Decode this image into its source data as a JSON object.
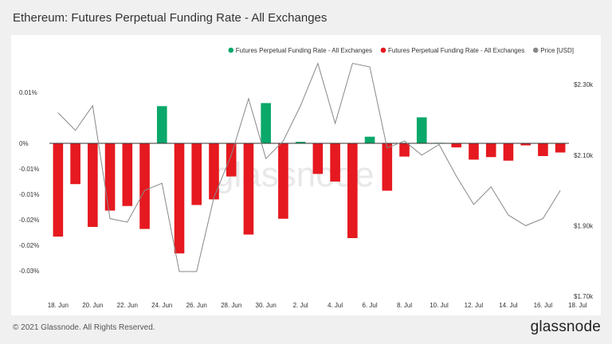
{
  "page": {
    "title": "Ethereum: Futures Perpetual Funding Rate - All Exchanges",
    "copyright": "© 2021 Glassnode. All Rights Reserved.",
    "brand": "glassnode",
    "watermark": "glassnode"
  },
  "colors": {
    "positive": "#0aa86a",
    "negative": "#e5191f",
    "price": "#888888",
    "zero_line": "#333333"
  },
  "chart_data": {
    "type": "bar",
    "title": "Ethereum: Futures Perpetual Funding Rate - All Exchanges",
    "legend": {
      "placement": "top-right",
      "items": [
        {
          "name": "Futures Perpetual Funding Rate - All Exchanges",
          "color": "#0aa86a",
          "icon": "dot"
        },
        {
          "name": "Futures Perpetual Funding Rate - All Exchanges",
          "color": "#e5191f",
          "icon": "dot"
        },
        {
          "name": "Price [USD]",
          "color": "#888888",
          "icon": "dot"
        }
      ]
    },
    "y_left": {
      "ylim": [
        -0.03,
        0.015
      ],
      "ticks": [
        {
          "value": 0.01,
          "label": "0.01%"
        },
        {
          "value": 0.0,
          "label": "0%"
        },
        {
          "value": -0.005,
          "label": "-0.01%"
        },
        {
          "value": -0.01,
          "label": "-0.01%"
        },
        {
          "value": -0.015,
          "label": "-0.02%"
        },
        {
          "value": -0.02,
          "label": "-0.02%"
        },
        {
          "value": -0.025,
          "label": "-0.03%"
        }
      ]
    },
    "y_right": {
      "ylim": [
        1.7,
        2.35
      ],
      "ticks": [
        {
          "value": 2.3,
          "label": "$2.30k"
        },
        {
          "value": 2.1,
          "label": "$2.10k"
        },
        {
          "value": 1.9,
          "label": "$1.90k"
        },
        {
          "value": 1.7,
          "label": "$1.70k"
        }
      ]
    },
    "x_ticks": [
      {
        "index": 0,
        "label": "18. Jun"
      },
      {
        "index": 2,
        "label": "20. Jun"
      },
      {
        "index": 4,
        "label": "22. Jun"
      },
      {
        "index": 6,
        "label": "24. Jun"
      },
      {
        "index": 8,
        "label": "26. Jun"
      },
      {
        "index": 10,
        "label": "28. Jun"
      },
      {
        "index": 12,
        "label": "30. Jun"
      },
      {
        "index": 14,
        "label": "2. Jul"
      },
      {
        "index": 16,
        "label": "4. Jul"
      },
      {
        "index": 18,
        "label": "6. Jul"
      },
      {
        "index": 20,
        "label": "8. Jul"
      },
      {
        "index": 22,
        "label": "10. Jul"
      },
      {
        "index": 24,
        "label": "12. Jul"
      },
      {
        "index": 26,
        "label": "14. Jul"
      },
      {
        "index": 28,
        "label": "16. Jul"
      },
      {
        "index": 30,
        "label": "18. Jul"
      }
    ],
    "funding_rate": [
      -0.0183,
      -0.008,
      -0.0164,
      -0.0132,
      -0.0123,
      -0.0168,
      0.0073,
      -0.0216,
      -0.0121,
      -0.011,
      -0.0065,
      -0.0179,
      0.0079,
      -0.0148,
      0.0003,
      -0.006,
      -0.0075,
      -0.0186,
      0.0013,
      -0.0093,
      -0.0026,
      0.0051,
      0.0001,
      -0.0008,
      -0.0032,
      -0.0027,
      -0.0034,
      -0.0004,
      -0.0025,
      -0.0018
    ],
    "price_k": [
      2.22,
      2.17,
      2.24,
      1.92,
      1.91,
      2.0,
      2.02,
      1.77,
      1.77,
      1.98,
      2.1,
      2.26,
      2.09,
      2.14,
      2.24,
      2.36,
      2.19,
      2.36,
      2.35,
      2.12,
      2.14,
      2.1,
      2.13,
      2.04,
      1.96,
      2.01,
      1.93,
      1.9,
      1.92,
      2.0
    ]
  }
}
